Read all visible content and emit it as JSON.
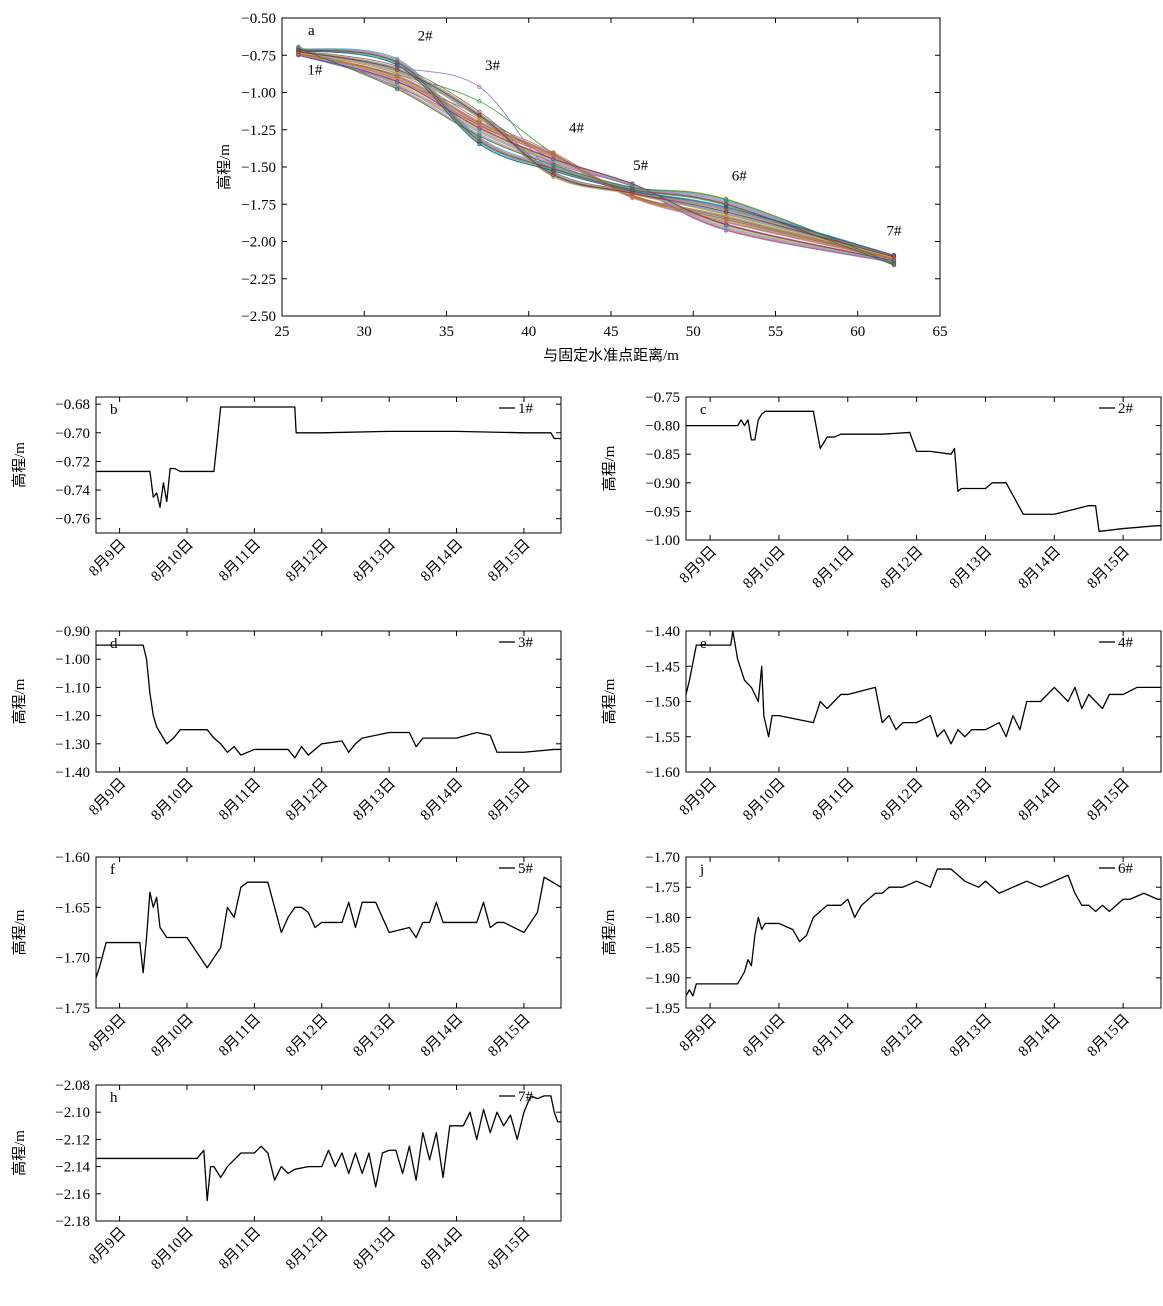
{
  "chart_data": [
    {
      "panel": "a",
      "type": "line",
      "xlabel": "与固定水准点距离/m",
      "ylabel": "高程/m",
      "xlim": [
        25,
        65
      ],
      "ylim": [
        -2.5,
        -0.5
      ],
      "xticks": [
        "25",
        "30",
        "35",
        "40",
        "45",
        "50",
        "55",
        "60",
        "65"
      ],
      "yticks": [
        "-0.50",
        "-0.75",
        "-1.00",
        "-1.25",
        "-1.50",
        "-1.75",
        "-2.00",
        "-2.25",
        "-2.50"
      ],
      "x": [
        26,
        32,
        37,
        41.5,
        46.3,
        52,
        62.2
      ],
      "point_labels": [
        "1#",
        "2#",
        "3#",
        "4#",
        "5#",
        "6#",
        "7#"
      ],
      "point_label_positions": [
        [
          27,
          -0.88
        ],
        [
          33.7,
          -0.65
        ],
        [
          37.8,
          -0.85
        ],
        [
          42.9,
          -1.27
        ],
        [
          46.8,
          -1.52
        ],
        [
          52.8,
          -1.59
        ],
        [
          62.2,
          -1.96
        ]
      ],
      "envelope_low": [
        -0.75,
        -0.98,
        -1.35,
        -1.57,
        -1.71,
        -1.93,
        -2.16
      ],
      "envelope_high": [
        -0.69,
        -0.77,
        -0.94,
        -1.4,
        -1.61,
        -1.71,
        -2.09
      ],
      "series_count": 36,
      "legend": "none"
    },
    {
      "panel": "b",
      "type": "line",
      "xlabel": "",
      "ylabel": "高程/m",
      "series_name": "1#",
      "legend": "top-right",
      "xlim": [
        -0.35,
        6.55
      ],
      "xticks": [
        "8月9日",
        "8月10日",
        "8月11日",
        "8月12日",
        "8月13日",
        "8月14日",
        "8月15日"
      ],
      "ylim": [
        -0.77,
        -0.675
      ],
      "yticks": [
        "-0.68",
        "-0.70",
        "-0.72",
        "-0.74",
        "-0.76"
      ],
      "x": [
        -0.35,
        0.15,
        0.45,
        0.5,
        0.55,
        0.6,
        0.65,
        0.7,
        0.75,
        0.82,
        0.9,
        1.0,
        1.2,
        1.4,
        1.45,
        1.5,
        1.55,
        2.5,
        2.6,
        2.62,
        3.0,
        4.0,
        5.0,
        6.0,
        6.4,
        6.45,
        6.55
      ],
      "y": [
        -0.727,
        -0.727,
        -0.727,
        -0.745,
        -0.742,
        -0.752,
        -0.735,
        -0.748,
        -0.725,
        -0.725,
        -0.727,
        -0.727,
        -0.727,
        -0.727,
        -0.705,
        -0.682,
        -0.682,
        -0.682,
        -0.682,
        -0.7,
        -0.7,
        -0.699,
        -0.699,
        -0.7,
        -0.7,
        -0.704,
        -0.704
      ]
    },
    {
      "panel": "c",
      "type": "line",
      "xlabel": "",
      "ylabel": "高程/m",
      "series_name": "2#",
      "legend": "top-right",
      "xlim": [
        -0.35,
        6.55
      ],
      "xticks": [
        "8月9日",
        "8月10日",
        "8月11日",
        "8月12日",
        "8月13日",
        "8月14日",
        "8月15日"
      ],
      "ylim": [
        -1.0,
        -0.75
      ],
      "yticks": [
        "-0.75",
        "-0.80",
        "-0.85",
        "-0.90",
        "-0.95",
        "-1.00"
      ],
      "x": [
        -0.35,
        0.4,
        0.45,
        0.5,
        0.55,
        0.6,
        0.65,
        0.7,
        0.75,
        0.8,
        0.85,
        0.9,
        1.0,
        1.5,
        1.6,
        1.65,
        1.7,
        1.8,
        1.9,
        2.0,
        2.5,
        2.9,
        3.0,
        3.1,
        3.2,
        3.5,
        3.55,
        3.6,
        3.65,
        3.7,
        4.0,
        4.1,
        4.2,
        4.3,
        4.55,
        5.0,
        5.5,
        5.6,
        5.65,
        6.0,
        6.5,
        6.55
      ],
      "y": [
        -0.8,
        -0.8,
        -0.79,
        -0.8,
        -0.79,
        -0.825,
        -0.825,
        -0.79,
        -0.78,
        -0.775,
        -0.775,
        -0.775,
        -0.775,
        -0.775,
        -0.84,
        -0.83,
        -0.82,
        -0.82,
        -0.815,
        -0.815,
        -0.815,
        -0.812,
        -0.845,
        -0.845,
        -0.845,
        -0.85,
        -0.84,
        -0.915,
        -0.91,
        -0.91,
        -0.91,
        -0.9,
        -0.9,
        -0.9,
        -0.955,
        -0.955,
        -0.94,
        -0.94,
        -0.985,
        -0.98,
        -0.975,
        -0.975
      ]
    },
    {
      "panel": "d",
      "type": "line",
      "xlabel": "",
      "ylabel": "高程/m",
      "series_name": "3#",
      "legend": "top-right",
      "xlim": [
        -0.35,
        6.55
      ],
      "xticks": [
        "8月9日",
        "8月10日",
        "8月11日",
        "8月12日",
        "8月13日",
        "8月14日",
        "8月15日"
      ],
      "ylim": [
        -1.4,
        -0.9
      ],
      "yticks": [
        "-0.90",
        "-1.00",
        "-1.10",
        "-1.20",
        "-1.30",
        "-1.40"
      ],
      "x": [
        -0.35,
        0.35,
        0.4,
        0.45,
        0.5,
        0.55,
        0.6,
        0.7,
        0.8,
        0.9,
        1.0,
        1.3,
        1.4,
        1.5,
        1.6,
        1.7,
        1.8,
        2.0,
        2.5,
        2.6,
        2.7,
        2.8,
        3.0,
        3.3,
        3.4,
        3.5,
        3.6,
        4.0,
        4.3,
        4.4,
        4.5,
        5.0,
        5.3,
        5.5,
        5.6,
        5.7,
        6.0,
        6.45,
        6.55
      ],
      "y": [
        -0.95,
        -0.95,
        -1.0,
        -1.12,
        -1.2,
        -1.24,
        -1.26,
        -1.3,
        -1.28,
        -1.25,
        -1.25,
        -1.25,
        -1.28,
        -1.3,
        -1.33,
        -1.31,
        -1.34,
        -1.32,
        -1.32,
        -1.35,
        -1.31,
        -1.34,
        -1.3,
        -1.29,
        -1.33,
        -1.3,
        -1.28,
        -1.26,
        -1.26,
        -1.31,
        -1.28,
        -1.28,
        -1.26,
        -1.27,
        -1.33,
        -1.33,
        -1.33,
        -1.32,
        -1.32
      ]
    },
    {
      "panel": "e",
      "type": "line",
      "xlabel": "",
      "ylabel": "高程/m",
      "series_name": "4#",
      "legend": "top-right",
      "xlim": [
        -0.35,
        6.55
      ],
      "xticks": [
        "8月9日",
        "8月10日",
        "8月11日",
        "8月12日",
        "8月13日",
        "8月14日",
        "8月15日"
      ],
      "ylim": [
        -1.6,
        -1.4
      ],
      "yticks": [
        "-1.40",
        "-1.45",
        "-1.50",
        "-1.55",
        "-1.60"
      ],
      "x": [
        -0.35,
        -0.3,
        -0.2,
        -0.1,
        0.3,
        0.33,
        0.4,
        0.5,
        0.6,
        0.7,
        0.75,
        0.78,
        0.85,
        0.9,
        0.95,
        1.0,
        1.5,
        1.6,
        1.7,
        1.8,
        1.9,
        2.0,
        2.4,
        2.5,
        2.6,
        2.7,
        2.8,
        3.0,
        3.2,
        3.3,
        3.4,
        3.5,
        3.6,
        3.7,
        3.8,
        4.0,
        4.2,
        4.3,
        4.4,
        4.5,
        4.6,
        4.7,
        4.8,
        5.0,
        5.2,
        5.3,
        5.4,
        5.5,
        5.6,
        5.7,
        5.8,
        6.0,
        6.2,
        6.3,
        6.55
      ],
      "y": [
        -1.49,
        -1.47,
        -1.42,
        -1.42,
        -1.42,
        -1.4,
        -1.44,
        -1.47,
        -1.48,
        -1.5,
        -1.45,
        -1.52,
        -1.55,
        -1.52,
        -1.52,
        -1.52,
        -1.53,
        -1.5,
        -1.51,
        -1.5,
        -1.49,
        -1.49,
        -1.48,
        -1.53,
        -1.52,
        -1.54,
        -1.53,
        -1.53,
        -1.52,
        -1.55,
        -1.54,
        -1.56,
        -1.54,
        -1.55,
        -1.54,
        -1.54,
        -1.53,
        -1.55,
        -1.52,
        -1.54,
        -1.5,
        -1.5,
        -1.5,
        -1.48,
        -1.5,
        -1.48,
        -1.51,
        -1.49,
        -1.5,
        -1.51,
        -1.49,
        -1.49,
        -1.48,
        -1.48,
        -1.48
      ]
    },
    {
      "panel": "f",
      "type": "line",
      "xlabel": "",
      "ylabel": "高程/m",
      "series_name": "5#",
      "legend": "top-right",
      "xlim": [
        -0.35,
        6.55
      ],
      "xticks": [
        "8月9日",
        "8月10日",
        "8月11日",
        "8月12日",
        "8月13日",
        "8月14日",
        "8月15日"
      ],
      "ylim": [
        -1.75,
        -1.6
      ],
      "yticks": [
        "-1.60",
        "-1.65",
        "-1.70",
        "-1.75"
      ],
      "x": [
        -0.35,
        -0.3,
        -0.2,
        -0.1,
        0.3,
        0.35,
        0.4,
        0.45,
        0.5,
        0.55,
        0.6,
        0.7,
        0.8,
        0.9,
        1.0,
        1.3,
        1.4,
        1.5,
        1.6,
        1.7,
        1.8,
        1.9,
        2.0,
        2.2,
        2.3,
        2.4,
        2.5,
        2.6,
        2.7,
        2.8,
        2.9,
        3.0,
        3.3,
        3.4,
        3.5,
        3.6,
        3.7,
        3.8,
        4.0,
        4.3,
        4.4,
        4.5,
        4.6,
        4.7,
        4.8,
        5.0,
        5.3,
        5.4,
        5.5,
        5.6,
        5.7,
        6.0,
        6.2,
        6.3,
        6.55
      ],
      "y": [
        -1.72,
        -1.71,
        -1.685,
        -1.685,
        -1.685,
        -1.715,
        -1.68,
        -1.635,
        -1.65,
        -1.64,
        -1.67,
        -1.68,
        -1.68,
        -1.68,
        -1.68,
        -1.71,
        -1.7,
        -1.69,
        -1.65,
        -1.66,
        -1.63,
        -1.625,
        -1.625,
        -1.625,
        -1.65,
        -1.675,
        -1.66,
        -1.65,
        -1.65,
        -1.655,
        -1.67,
        -1.665,
        -1.665,
        -1.645,
        -1.67,
        -1.645,
        -1.645,
        -1.645,
        -1.675,
        -1.67,
        -1.68,
        -1.665,
        -1.665,
        -1.645,
        -1.665,
        -1.665,
        -1.665,
        -1.645,
        -1.67,
        -1.665,
        -1.665,
        -1.675,
        -1.655,
        -1.62,
        -1.63
      ]
    },
    {
      "panel": "j",
      "type": "line",
      "xlabel": "",
      "ylabel": "高程/m",
      "series_name": "6#",
      "legend": "top-right",
      "xlim": [
        -0.35,
        6.55
      ],
      "xticks": [
        "8月9日",
        "8月10日",
        "8月11日",
        "8月12日",
        "8月13日",
        "8月14日",
        "8月15日"
      ],
      "ylim": [
        -1.95,
        -1.7
      ],
      "yticks": [
        "-1.70",
        "-1.75",
        "-1.80",
        "-1.85",
        "-1.90",
        "-1.95"
      ],
      "x": [
        -0.35,
        -0.3,
        -0.25,
        -0.2,
        0.2,
        0.3,
        0.4,
        0.5,
        0.55,
        0.6,
        0.65,
        0.7,
        0.75,
        0.8,
        0.9,
        1.0,
        1.2,
        1.3,
        1.4,
        1.5,
        1.6,
        1.7,
        1.9,
        2.0,
        2.1,
        2.2,
        2.4,
        2.5,
        2.6,
        2.8,
        3.0,
        3.2,
        3.3,
        3.5,
        3.7,
        3.9,
        4.0,
        4.2,
        4.4,
        4.6,
        4.8,
        5.0,
        5.2,
        5.3,
        5.4,
        5.5,
        5.6,
        5.7,
        5.8,
        6.0,
        6.1,
        6.3,
        6.5,
        6.55
      ],
      "y": [
        -1.93,
        -1.92,
        -1.93,
        -1.91,
        -1.91,
        -1.91,
        -1.91,
        -1.89,
        -1.87,
        -1.88,
        -1.83,
        -1.8,
        -1.82,
        -1.81,
        -1.81,
        -1.81,
        -1.82,
        -1.84,
        -1.83,
        -1.8,
        -1.79,
        -1.78,
        -1.78,
        -1.77,
        -1.8,
        -1.78,
        -1.76,
        -1.76,
        -1.75,
        -1.75,
        -1.74,
        -1.75,
        -1.72,
        -1.72,
        -1.74,
        -1.75,
        -1.74,
        -1.76,
        -1.75,
        -1.74,
        -1.75,
        -1.74,
        -1.73,
        -1.76,
        -1.78,
        -1.78,
        -1.79,
        -1.78,
        -1.79,
        -1.77,
        -1.77,
        -1.76,
        -1.77,
        -1.77
      ]
    },
    {
      "panel": "h",
      "type": "line",
      "xlabel": "",
      "ylabel": "高程/m",
      "series_name": "7#",
      "legend": "top-right",
      "xlim": [
        -0.35,
        6.55
      ],
      "xticks": [
        "8月9日",
        "8月10日",
        "8月11日",
        "8月12日",
        "8月13日",
        "8月14日",
        "8月15日"
      ],
      "ylim": [
        -2.18,
        -2.08
      ],
      "yticks": [
        "-2.08",
        "-2.10",
        "-2.12",
        "-2.14",
        "-2.16",
        "-2.18"
      ],
      "x": [
        -0.35,
        0.0,
        0.5,
        1.0,
        1.15,
        1.25,
        1.3,
        1.35,
        1.4,
        1.5,
        1.6,
        1.7,
        1.8,
        1.9,
        2.0,
        2.1,
        2.2,
        2.3,
        2.4,
        2.5,
        2.6,
        2.8,
        3.0,
        3.1,
        3.2,
        3.3,
        3.4,
        3.5,
        3.6,
        3.7,
        3.8,
        3.9,
        4.0,
        4.1,
        4.2,
        4.3,
        4.4,
        4.5,
        4.6,
        4.7,
        4.8,
        4.9,
        5.0,
        5.1,
        5.2,
        5.3,
        5.4,
        5.5,
        5.6,
        5.7,
        5.8,
        5.9,
        6.0,
        6.1,
        6.2,
        6.3,
        6.4,
        6.45,
        6.5,
        6.55
      ],
      "y": [
        -2.134,
        -2.134,
        -2.134,
        -2.134,
        -2.134,
        -2.128,
        -2.165,
        -2.14,
        -2.14,
        -2.148,
        -2.14,
        -2.135,
        -2.13,
        -2.13,
        -2.13,
        -2.125,
        -2.13,
        -2.15,
        -2.14,
        -2.145,
        -2.142,
        -2.14,
        -2.14,
        -2.128,
        -2.14,
        -2.13,
        -2.145,
        -2.13,
        -2.145,
        -2.13,
        -2.155,
        -2.13,
        -2.128,
        -2.128,
        -2.145,
        -2.125,
        -2.15,
        -2.115,
        -2.135,
        -2.115,
        -2.148,
        -2.11,
        -2.11,
        -2.11,
        -2.1,
        -2.12,
        -2.098,
        -2.115,
        -2.1,
        -2.11,
        -2.102,
        -2.12,
        -2.1,
        -2.088,
        -2.09,
        -2.088,
        -2.088,
        -2.1,
        -2.107,
        -2.107
      ]
    }
  ]
}
